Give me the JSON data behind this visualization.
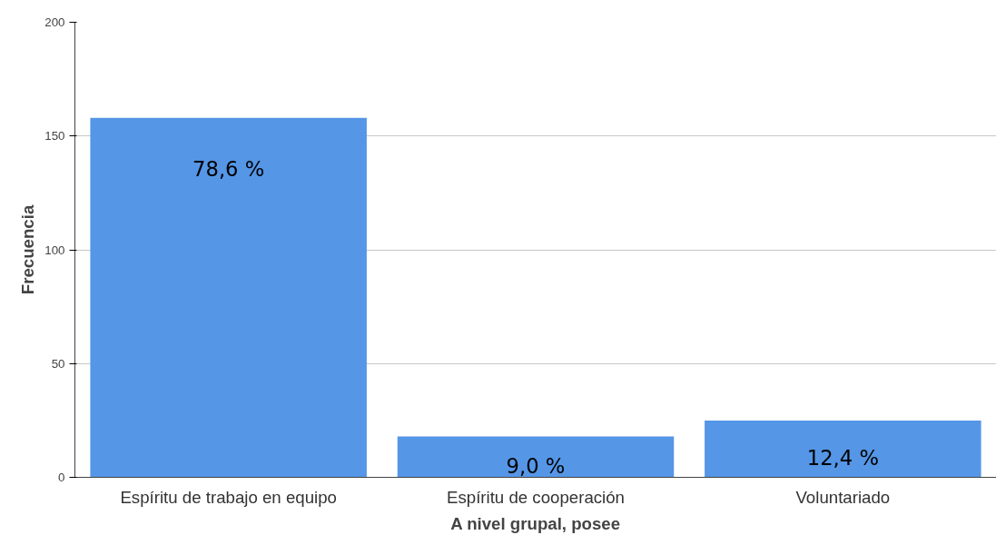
{
  "chart_data": {
    "type": "bar",
    "xlabel": "A nivel grupal, posee",
    "ylabel": "Frecuencia",
    "categories": [
      "Espíritu de trabajo en equipo",
      "Espíritu de cooperación",
      "Voluntariado"
    ],
    "values": [
      158,
      18,
      25
    ],
    "annotations": [
      {
        "text": "78,6 %",
        "x": "Espíritu de trabajo en equipo",
        "y": 158
      },
      {
        "text": "9,0 %",
        "x": "Espíritu de cooperación",
        "y": 18
      },
      {
        "text": "12,4 %",
        "x": "Voluntariado",
        "y": 25
      }
    ],
    "color": "#5596e6",
    "ylim": [
      0,
      200
    ],
    "yticks": [
      0,
      50,
      100,
      150,
      200
    ],
    "grid": "y"
  }
}
